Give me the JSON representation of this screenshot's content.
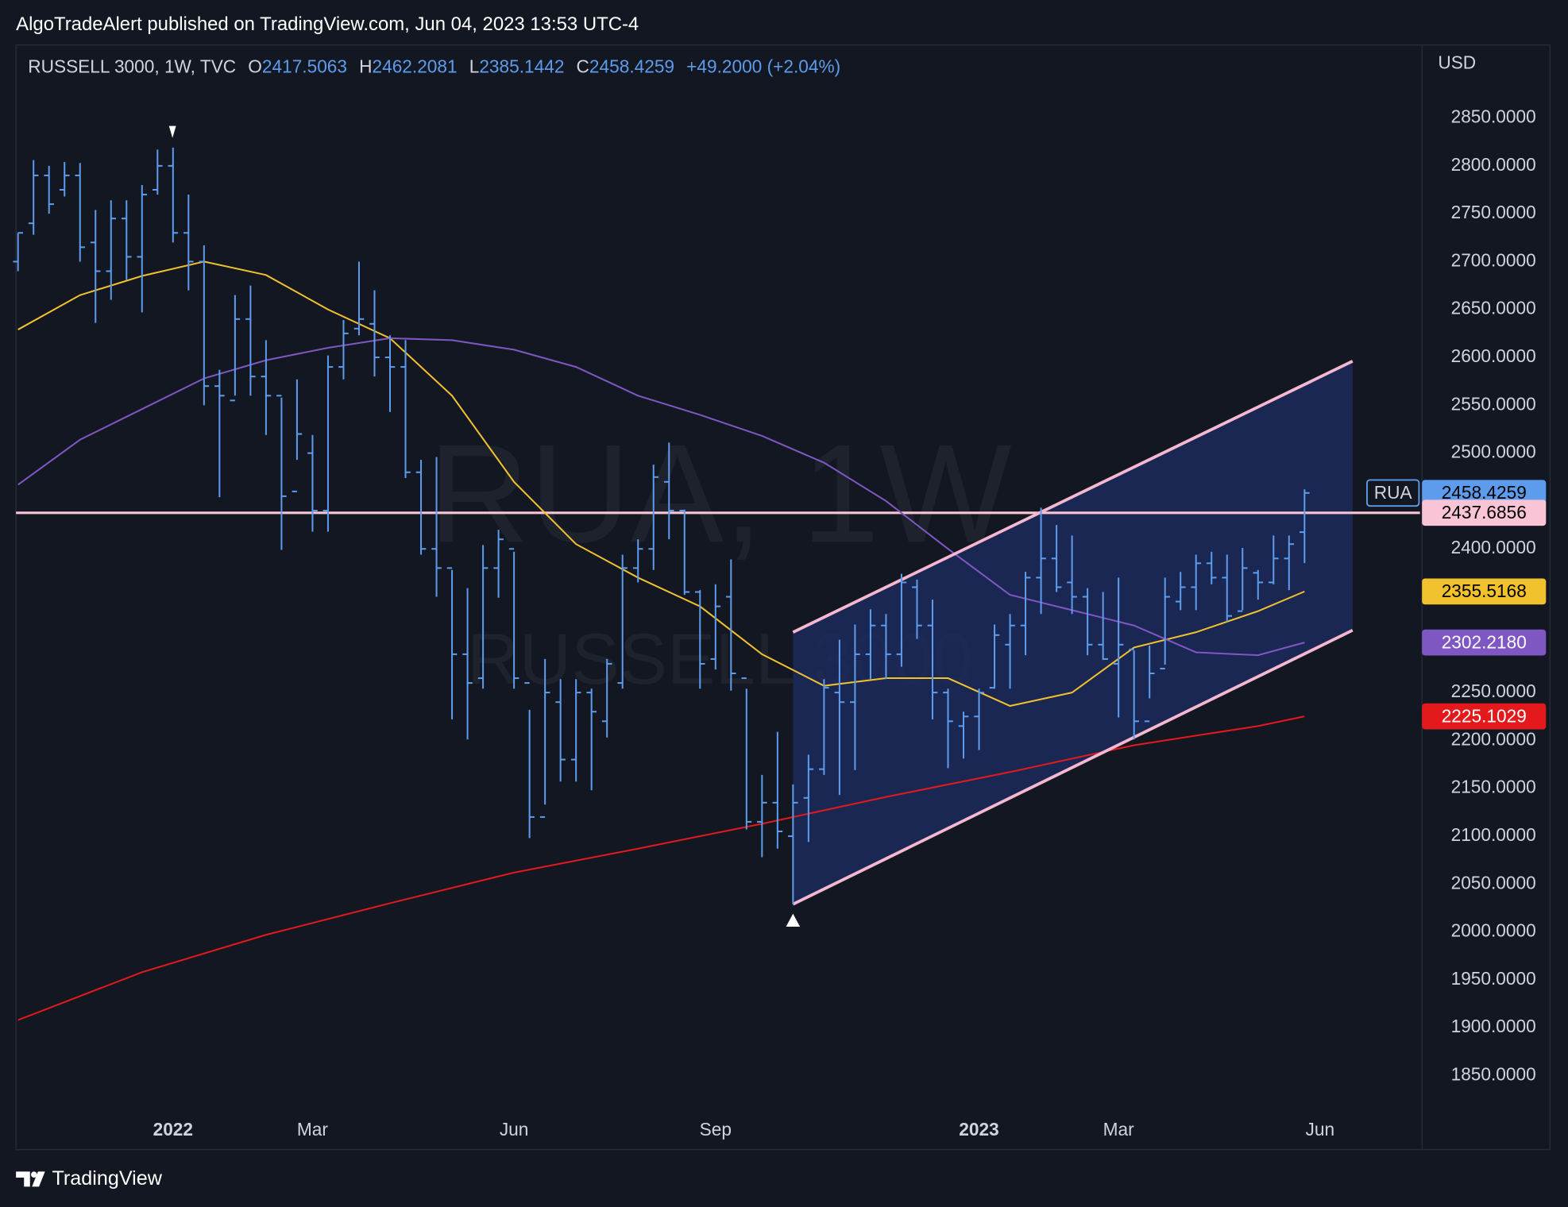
{
  "header": "AlgoTradeAlert published on TradingView.com, Jun 04, 2023 13:53 UTC-4",
  "footer": "TradingView",
  "chart_data": {
    "type": "ohlc",
    "legend": {
      "symbol": "RUSSELL 3000, 1W, TVC",
      "labels": [
        "O",
        "H",
        "L",
        "C"
      ],
      "change": "+49.2000 (+2.04%)"
    },
    "watermark": [
      "RUA, 1W",
      "RUSSELL 3000"
    ],
    "currency": "USD",
    "ticker": "RUA",
    "color": "#5d9cec",
    "bars": [
      [
        2700,
        2730,
        2690,
        2730
      ],
      [
        2740,
        2806,
        2728,
        2790
      ],
      [
        2790,
        2800,
        2750,
        2760
      ],
      [
        2775,
        2804,
        2768,
        2790
      ],
      [
        2790,
        2803,
        2700,
        2715
      ],
      [
        2720,
        2754,
        2636,
        2690
      ],
      [
        2690,
        2764,
        2660,
        2745
      ],
      [
        2745,
        2764,
        2681,
        2705
      ],
      [
        2705,
        2780,
        2647,
        2770
      ],
      [
        2775,
        2817,
        2770,
        2800
      ],
      [
        2800,
        2819,
        2720,
        2730
      ],
      [
        2730,
        2770,
        2670,
        2700
      ],
      [
        2700,
        2717,
        2550,
        2570
      ],
      [
        2570,
        2587,
        2454,
        2560
      ],
      [
        2555,
        2665,
        2560,
        2640
      ],
      [
        2640,
        2675,
        2560,
        2580
      ],
      [
        2580,
        2618,
        2519,
        2560
      ],
      [
        2560,
        2558,
        2399,
        2455
      ],
      [
        2460,
        2577,
        2493,
        2520
      ],
      [
        2500,
        2519,
        2418,
        2440
      ],
      [
        2440,
        2602,
        2418,
        2590
      ],
      [
        2590,
        2639,
        2577,
        2625
      ],
      [
        2630,
        2700,
        2623,
        2640
      ],
      [
        2635,
        2670,
        2580,
        2600
      ],
      [
        2600,
        2623,
        2543,
        2590
      ],
      [
        2590,
        2618,
        2474,
        2480
      ],
      [
        2480,
        2493,
        2394,
        2400
      ],
      [
        2400,
        2496,
        2350,
        2380
      ],
      [
        2380,
        2378,
        2222,
        2290
      ],
      [
        2290,
        2359,
        2201,
        2260
      ],
      [
        2265,
        2404,
        2254,
        2380
      ],
      [
        2380,
        2420,
        2349,
        2410
      ],
      [
        2400,
        2397,
        2254,
        2265
      ],
      [
        2260,
        2232,
        2098,
        2120
      ],
      [
        2120,
        2285,
        2133,
        2250
      ],
      [
        2240,
        2264,
        2157,
        2180
      ],
      [
        2180,
        2264,
        2157,
        2250
      ],
      [
        2250,
        2254,
        2148,
        2230
      ],
      [
        2220,
        2285,
        2203,
        2280
      ],
      [
        2260,
        2394,
        2254,
        2380
      ],
      [
        2380,
        2410,
        2365,
        2400
      ],
      [
        2400,
        2488,
        2378,
        2475
      ],
      [
        2470,
        2511,
        2410,
        2440
      ],
      [
        2440,
        2441,
        2352,
        2355
      ],
      [
        2355,
        2357,
        2254,
        2280
      ],
      [
        2285,
        2363,
        2274,
        2340
      ],
      [
        2350,
        2389,
        2252,
        2270
      ],
      [
        2265,
        2254,
        2107,
        2115
      ],
      [
        2115,
        2164,
        2078,
        2135
      ],
      [
        2135,
        2209,
        2087,
        2105
      ],
      [
        2100,
        2154,
        2029,
        2135
      ],
      [
        2140,
        2185,
        2094,
        2170
      ],
      [
        2170,
        2264,
        2164,
        2255
      ],
      [
        2250,
        2305,
        2143,
        2240
      ],
      [
        2240,
        2321,
        2169,
        2290
      ],
      [
        2290,
        2337,
        2264,
        2320
      ],
      [
        2320,
        2332,
        2264,
        2290
      ],
      [
        2290,
        2374,
        2277,
        2365
      ],
      [
        2360,
        2368,
        2306,
        2320
      ],
      [
        2320,
        2347,
        2222,
        2250
      ],
      [
        2250,
        2254,
        2171,
        2220
      ],
      [
        2215,
        2230,
        2181,
        2225
      ],
      [
        2225,
        2254,
        2190,
        2250
      ],
      [
        2255,
        2321,
        2254,
        2310
      ],
      [
        2300,
        2332,
        2254,
        2320
      ],
      [
        2320,
        2376,
        2289,
        2370
      ],
      [
        2370,
        2443,
        2332,
        2390
      ],
      [
        2390,
        2425,
        2355,
        2360
      ],
      [
        2365,
        2414,
        2332,
        2350
      ],
      [
        2350,
        2359,
        2289,
        2300
      ],
      [
        2300,
        2355,
        2284,
        2285
      ],
      [
        2280,
        2370,
        2224,
        2300
      ],
      [
        2295,
        2294,
        2201,
        2220
      ],
      [
        2220,
        2299,
        2244,
        2270
      ],
      [
        2275,
        2370,
        2279,
        2350
      ],
      [
        2345,
        2376,
        2336,
        2360
      ],
      [
        2360,
        2394,
        2336,
        2385
      ],
      [
        2385,
        2397,
        2363,
        2370
      ],
      [
        2370,
        2394,
        2324,
        2330
      ],
      [
        2335,
        2401,
        2336,
        2380
      ],
      [
        2375,
        2378,
        2347,
        2365
      ],
      [
        2365,
        2414,
        2363,
        2390
      ],
      [
        2390,
        2414,
        2357,
        2405
      ],
      [
        2417.5063,
        2462.2081,
        2385.1442,
        2458.4259
      ]
    ],
    "series": [
      {
        "color": "#f2c12e",
        "x": [
          0,
          4,
          8,
          12,
          16,
          20,
          24,
          28,
          32,
          36,
          40,
          44,
          48,
          52,
          56,
          60,
          64,
          68,
          72,
          76,
          80,
          83
        ],
        "values": [
          2629,
          2665,
          2685,
          2700,
          2686,
          2650,
          2620,
          2560,
          2470,
          2405,
          2370,
          2340,
          2290,
          2257,
          2265,
          2265,
          2236,
          2250,
          2297,
          2313,
          2335,
          2355.5168
        ]
      },
      {
        "color": "#7e57c2",
        "label_text": "#ffffff",
        "x": [
          0,
          4,
          8,
          12,
          16,
          20,
          24,
          28,
          32,
          36,
          40,
          44,
          48,
          52,
          56,
          60,
          64,
          68,
          72,
          76,
          80,
          83
        ],
        "values": [
          2467,
          2514,
          2546,
          2578,
          2597,
          2610,
          2620,
          2618,
          2608,
          2590,
          2560,
          2540,
          2518,
          2490,
          2450,
          2400,
          2352,
          2336,
          2320,
          2292,
          2289,
          2302.218
        ],
        "price_label": "2302.2180"
      },
      {
        "color": "#e3191c",
        "label_text": "#ffffff",
        "x": [
          0,
          8,
          16,
          24,
          32,
          40,
          48,
          56,
          64,
          72,
          80,
          83
        ],
        "values": [
          1908,
          1958,
          1997,
          2030,
          2062,
          2087,
          2113,
          2141,
          2167,
          2195,
          2215,
          2225.1029
        ]
      }
    ],
    "channel": {
      "color": "#f5b8d0",
      "fill": "#1d2a5c",
      "x": [
        50,
        86.1
      ],
      "upper": [
        2313,
        2596
      ],
      "lower": [
        2029,
        2315
      ]
    },
    "hline": {
      "value": 2437.6856,
      "color": "#f8c4d6"
    },
    "xlim": [
      -0.13,
      90.45
    ],
    "ylim": [
      1772.7,
      2926.2
    ],
    "xticks": [
      {
        "value": 10,
        "label": "2022"
      },
      {
        "value": 19,
        "label": "Mar"
      },
      {
        "value": 32,
        "label": "Jun"
      },
      {
        "value": 45,
        "label": "Sep"
      },
      {
        "value": 62,
        "label": "2023"
      },
      {
        "value": 71,
        "label": "Mar"
      },
      {
        "value": 84,
        "label": "Jun"
      }
    ],
    "yticks": [
      {
        "value": 2850,
        "label": "2850.0000"
      },
      {
        "value": 2800,
        "label": "2800.0000"
      },
      {
        "value": 2750,
        "label": "2750.0000"
      },
      {
        "value": 2700,
        "label": "2700.0000"
      },
      {
        "value": 2650,
        "label": "2650.0000"
      },
      {
        "value": 2600,
        "label": "2600.0000"
      },
      {
        "value": 2550,
        "label": "2550.0000"
      },
      {
        "value": 2500,
        "label": "2500.0000"
      },
      {
        "value": 2400,
        "label": "2400.0000"
      },
      {
        "value": 2250,
        "label": "2250.0000"
      },
      {
        "value": 2200,
        "label": "2200.0000"
      },
      {
        "value": 2150,
        "label": "2150.0000"
      },
      {
        "value": 2100,
        "label": "2100.0000"
      },
      {
        "value": 2050,
        "label": "2050.0000"
      },
      {
        "value": 2000,
        "label": "2000.0000"
      },
      {
        "value": 1950,
        "label": "1950.0000"
      },
      {
        "value": 1900,
        "label": "1900.0000"
      },
      {
        "value": 1850,
        "label": "1850.0000"
      }
    ]
  }
}
